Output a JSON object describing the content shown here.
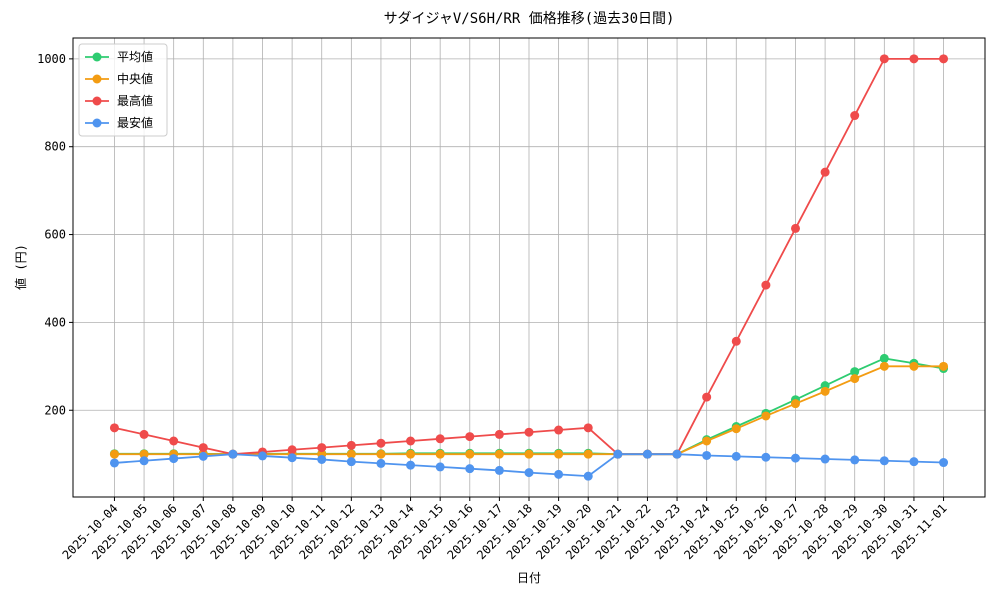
{
  "chart_data": {
    "type": "line",
    "title": "サダイジャV/S6H/RR 価格推移(過去30日間)",
    "x_label": "日付",
    "y_label": "値 (円)",
    "categories": [
      "2025-10-04",
      "2025-10-05",
      "2025-10-06",
      "2025-10-07",
      "2025-10-08",
      "2025-10-09",
      "2025-10-10",
      "2025-10-11",
      "2025-10-12",
      "2025-10-13",
      "2025-10-14",
      "2025-10-15",
      "2025-10-16",
      "2025-10-17",
      "2025-10-18",
      "2025-10-19",
      "2025-10-20",
      "2025-10-21",
      "2025-10-22",
      "2025-10-23",
      "2025-10-24",
      "2025-10-25",
      "2025-10-26",
      "2025-10-27",
      "2025-10-28",
      "2025-10-29",
      "2025-10-30",
      "2025-10-31",
      "2025-11-01"
    ],
    "series": [
      {
        "name": "平均値",
        "color": "#2ecc71",
        "values": [
          101,
          101,
          101,
          101,
          100,
          101,
          101,
          101,
          101,
          101,
          102,
          102,
          102,
          102,
          102,
          102,
          102,
          100,
          100,
          100,
          133,
          163,
          193,
          224,
          256,
          288,
          318,
          307,
          295
        ]
      },
      {
        "name": "中央値",
        "color": "#f39c12",
        "values": [
          100,
          100,
          100,
          100,
          100,
          100,
          100,
          100,
          100,
          100,
          100,
          100,
          100,
          100,
          100,
          100,
          100,
          100,
          100,
          100,
          130,
          158,
          187,
          215,
          243,
          272,
          300,
          300,
          300
        ]
      },
      {
        "name": "最高値",
        "color": "#ef4b4b",
        "values": [
          160,
          145,
          130,
          115,
          100,
          105,
          110,
          115,
          120,
          125,
          130,
          135,
          140,
          145,
          150,
          155,
          160,
          100,
          100,
          100,
          230,
          357,
          485,
          614,
          742,
          871,
          1000,
          1000,
          1000
        ]
      },
      {
        "name": "最安値",
        "color": "#4f94ef",
        "values": [
          80,
          85,
          90,
          95,
          100,
          96,
          92,
          88,
          83,
          79,
          75,
          71,
          67,
          63,
          58,
          54,
          50,
          100,
          100,
          100,
          97,
          95,
          93,
          91,
          89,
          87,
          85,
          83,
          81
        ]
      }
    ],
    "ylim": [
      2.5,
      1047.5
    ],
    "yticks": [
      200,
      400,
      600,
      800,
      1000
    ],
    "grid": true,
    "legend": "upper-left"
  }
}
